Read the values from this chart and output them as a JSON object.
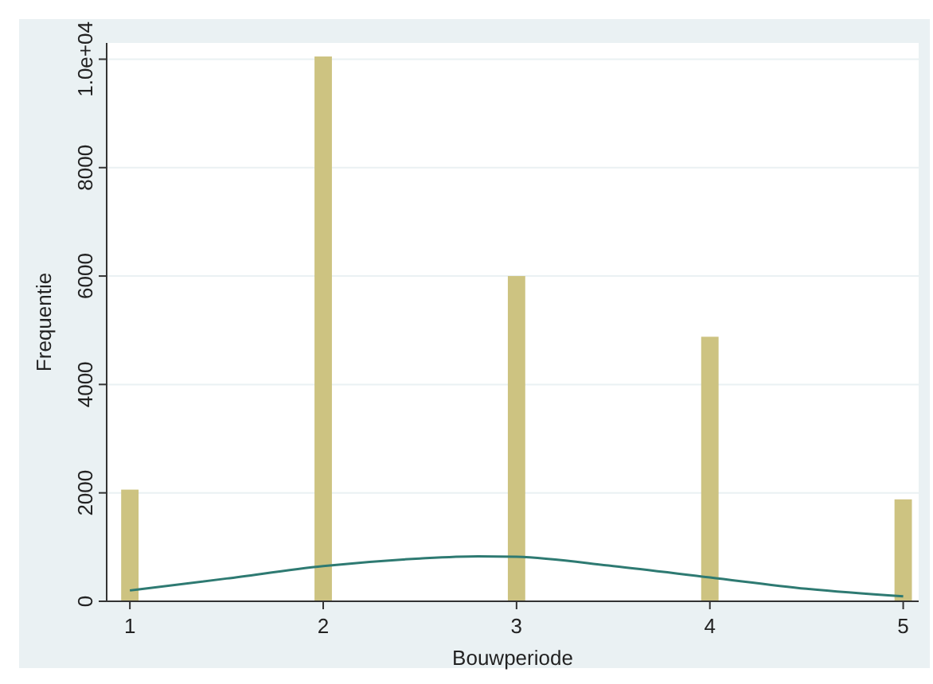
{
  "chart_data": {
    "type": "bar",
    "xlabel": "Bouwperiode",
    "ylabel": "Frequentie",
    "xlim": [
      0.88,
      5.08
    ],
    "xticks": [
      1,
      2,
      3,
      4,
      5
    ],
    "ylim": [
      0,
      10300
    ],
    "yticks": [
      0,
      2000,
      4000,
      6000,
      8000,
      {
        "value": 10000,
        "label": "1.0e+04"
      }
    ],
    "grid": "y",
    "series": [
      {
        "color": "#cdc381",
        "x": [
          1,
          2,
          3,
          4,
          5
        ],
        "values": [
          2060,
          10050,
          6000,
          4880,
          1880
        ]
      },
      {
        "type": "line",
        "color": "#2e7a72",
        "marker": "none",
        "x": [
          1,
          1.5,
          2,
          2.5,
          2.8,
          3,
          3.5,
          4,
          4.5,
          5
        ],
        "values": [
          200,
          420,
          650,
          790,
          830,
          820,
          650,
          440,
          230,
          90
        ]
      }
    ]
  }
}
